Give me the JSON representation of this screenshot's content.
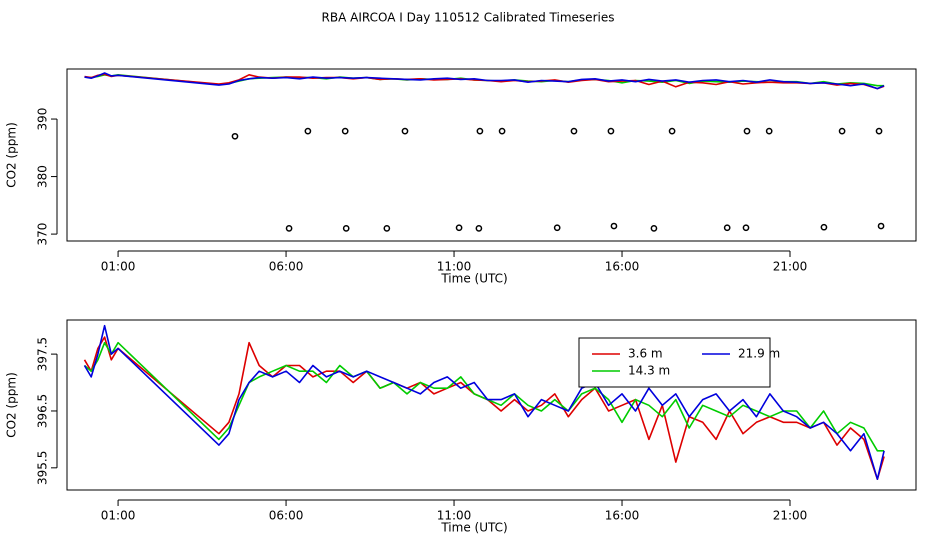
{
  "title": "RBA AIRCOA I  Day 110512  Calibrated Timeseries",
  "chart_data": [
    {
      "type": "line",
      "xlabel": "Time (UTC)",
      "ylabel": "CO2 (ppm)",
      "xlim": [
        -0.52,
        24.75
      ],
      "ylim": [
        368.8,
        398.7
      ],
      "xticks": [
        {
          "value": 1,
          "label": "01:00"
        },
        {
          "value": 6,
          "label": "06:00"
        },
        {
          "value": 11,
          "label": "11:00"
        },
        {
          "value": 16,
          "label": "16:00"
        },
        {
          "value": 21,
          "label": "21:00"
        }
      ],
      "yticks": [
        370,
        380,
        390
      ],
      "x": [
        0,
        0.2,
        0.4,
        0.6,
        0.8,
        1.0,
        4.0,
        4.3,
        4.6,
        4.9,
        5.2,
        5.6,
        6.0,
        6.4,
        6.8,
        7.2,
        7.6,
        8.0,
        8.4,
        8.8,
        9.2,
        9.6,
        10.0,
        10.4,
        10.8,
        11.2,
        11.6,
        12.0,
        12.4,
        12.8,
        13.2,
        13.6,
        14.0,
        14.4,
        14.8,
        15.2,
        15.6,
        16.0,
        16.4,
        16.8,
        17.2,
        17.6,
        18.0,
        18.4,
        18.8,
        19.2,
        19.6,
        20.0,
        20.4,
        20.8,
        21.2,
        21.6,
        22.0,
        22.4,
        22.8,
        23.2,
        23.6,
        23.8
      ],
      "series": [
        {
          "color": "#00cc00",
          "values": [
            397.3,
            397.2,
            397.4,
            397.7,
            397.5,
            397.7,
            396.0,
            396.2,
            396.6,
            397.0,
            397.1,
            397.2,
            397.3,
            397.2,
            397.2,
            397.0,
            397.3,
            397.1,
            397.2,
            396.9,
            397.0,
            396.8,
            397.0,
            396.9,
            396.9,
            397.1,
            396.8,
            396.7,
            396.6,
            396.8,
            396.6,
            396.5,
            396.7,
            396.5,
            396.8,
            396.9,
            396.7,
            396.3,
            396.7,
            396.6,
            396.4,
            396.7,
            396.2,
            396.6,
            396.5,
            396.4,
            396.6,
            396.5,
            396.4,
            396.5,
            396.5,
            396.2,
            396.5,
            396.1,
            396.3,
            396.2,
            395.8,
            395.8
          ]
        },
        {
          "color": "#dd0000",
          "values": [
            397.4,
            397.2,
            397.6,
            397.8,
            397.4,
            397.6,
            396.1,
            396.3,
            396.8,
            397.7,
            397.3,
            397.1,
            397.3,
            397.3,
            397.1,
            397.2,
            397.2,
            397.0,
            397.2,
            396.9,
            397.0,
            396.9,
            397.0,
            396.8,
            396.9,
            397.0,
            396.8,
            396.7,
            396.5,
            396.7,
            396.5,
            396.6,
            396.8,
            396.4,
            396.7,
            396.9,
            396.5,
            396.6,
            396.7,
            396.0,
            396.6,
            395.6,
            396.4,
            396.3,
            396.0,
            396.5,
            396.1,
            396.3,
            396.4,
            396.3,
            396.3,
            396.2,
            396.3,
            395.9,
            396.2,
            396.0,
            395.3,
            395.7
          ]
        },
        {
          "color": "#0000dd",
          "values": [
            397.3,
            397.1,
            397.5,
            398.0,
            397.5,
            397.6,
            395.9,
            396.1,
            396.7,
            397.0,
            397.2,
            397.1,
            397.2,
            397.0,
            397.3,
            397.1,
            397.2,
            397.1,
            397.2,
            397.1,
            397.0,
            396.9,
            396.8,
            397.0,
            397.1,
            396.9,
            397.0,
            396.7,
            396.7,
            396.8,
            396.4,
            396.7,
            396.6,
            396.5,
            396.9,
            397.0,
            396.6,
            396.8,
            396.5,
            396.9,
            396.6,
            396.8,
            396.4,
            396.7,
            396.8,
            396.5,
            396.7,
            396.4,
            396.8,
            396.5,
            396.4,
            396.2,
            396.3,
            396.1,
            395.8,
            396.1,
            395.3,
            395.8
          ]
        },
        {
          "type": "scatter",
          "color": "#000000",
          "x": [
            4.48,
            6.65,
            7.76,
            9.54,
            11.77,
            12.43,
            14.57,
            15.67,
            17.49,
            19.72,
            20.38,
            22.55,
            23.65,
            6.09,
            7.79,
            9.0,
            11.15,
            11.74,
            14.07,
            15.76,
            16.95,
            19.13,
            19.69,
            22.01,
            23.71
          ],
          "values": [
            387.0,
            387.9,
            387.9,
            387.9,
            387.9,
            387.9,
            387.9,
            387.9,
            387.9,
            387.9,
            387.9,
            387.9,
            387.9,
            371.0,
            371.0,
            371.0,
            371.1,
            371.0,
            371.1,
            371.4,
            371.0,
            371.1,
            371.1,
            371.2,
            371.4
          ]
        }
      ]
    },
    {
      "type": "line",
      "xlabel": "Time (UTC)",
      "ylabel": "CO2 (ppm)",
      "xlim": [
        -0.52,
        24.75
      ],
      "ylim": [
        395.11,
        398.1
      ],
      "xticks": [
        {
          "value": 1,
          "label": "01:00"
        },
        {
          "value": 6,
          "label": "06:00"
        },
        {
          "value": 11,
          "label": "11:00"
        },
        {
          "value": 16,
          "label": "16:00"
        },
        {
          "value": 21,
          "label": "21:00"
        }
      ],
      "yticks": [
        395.5,
        396.5,
        397.5
      ],
      "legend": "top-right",
      "x": [
        0,
        0.2,
        0.4,
        0.6,
        0.8,
        1.0,
        4.0,
        4.3,
        4.6,
        4.9,
        5.2,
        5.6,
        6.0,
        6.4,
        6.8,
        7.2,
        7.6,
        8.0,
        8.4,
        8.8,
        9.2,
        9.6,
        10.0,
        10.4,
        10.8,
        11.2,
        11.6,
        12.0,
        12.4,
        12.8,
        13.2,
        13.6,
        14.0,
        14.4,
        14.8,
        15.2,
        15.6,
        16.0,
        16.4,
        16.8,
        17.2,
        17.6,
        18.0,
        18.4,
        18.8,
        19.2,
        19.6,
        20.0,
        20.4,
        20.8,
        21.2,
        21.6,
        22.0,
        22.4,
        22.8,
        23.2,
        23.6,
        23.8
      ],
      "series": [
        {
          "name": "3.6 m",
          "color": "#dd0000",
          "values": [
            397.4,
            397.2,
            397.6,
            397.8,
            397.4,
            397.6,
            396.1,
            396.3,
            396.8,
            397.7,
            397.3,
            397.1,
            397.3,
            397.3,
            397.1,
            397.2,
            397.2,
            397.0,
            397.2,
            396.9,
            397.0,
            396.9,
            397.0,
            396.8,
            396.9,
            397.0,
            396.8,
            396.7,
            396.5,
            396.7,
            396.5,
            396.6,
            396.8,
            396.4,
            396.7,
            396.9,
            396.5,
            396.6,
            396.7,
            396.0,
            396.6,
            395.6,
            396.4,
            396.3,
            396.0,
            396.5,
            396.1,
            396.3,
            396.4,
            396.3,
            396.3,
            396.2,
            396.3,
            395.9,
            396.2,
            396.0,
            395.3,
            395.7
          ]
        },
        {
          "name": "14.3 m",
          "color": "#00cc00",
          "values": [
            397.3,
            397.2,
            397.4,
            397.7,
            397.5,
            397.7,
            396.0,
            396.2,
            396.6,
            397.0,
            397.1,
            397.2,
            397.3,
            397.2,
            397.2,
            397.0,
            397.3,
            397.1,
            397.2,
            396.9,
            397.0,
            396.8,
            397.0,
            396.9,
            396.9,
            397.1,
            396.8,
            396.7,
            396.6,
            396.8,
            396.6,
            396.5,
            396.7,
            396.5,
            396.8,
            396.9,
            396.7,
            396.3,
            396.7,
            396.6,
            396.4,
            396.7,
            396.2,
            396.6,
            396.5,
            396.4,
            396.6,
            396.5,
            396.4,
            396.5,
            396.5,
            396.2,
            396.5,
            396.1,
            396.3,
            396.2,
            395.8,
            395.8
          ]
        },
        {
          "name": "21.9 m",
          "color": "#0000dd",
          "values": [
            397.3,
            397.1,
            397.5,
            398.0,
            397.5,
            397.6,
            395.9,
            396.1,
            396.7,
            397.0,
            397.2,
            397.1,
            397.2,
            397.0,
            397.3,
            397.1,
            397.2,
            397.1,
            397.2,
            397.1,
            397.0,
            396.9,
            396.8,
            397.0,
            397.1,
            396.9,
            397.0,
            396.7,
            396.7,
            396.8,
            396.4,
            396.7,
            396.6,
            396.5,
            396.9,
            397.0,
            396.6,
            396.8,
            396.5,
            396.9,
            396.6,
            396.8,
            396.4,
            396.7,
            396.8,
            396.5,
            396.7,
            396.4,
            396.8,
            396.5,
            396.4,
            396.2,
            396.3,
            396.1,
            395.8,
            396.1,
            395.3,
            395.8
          ]
        }
      ]
    }
  ]
}
